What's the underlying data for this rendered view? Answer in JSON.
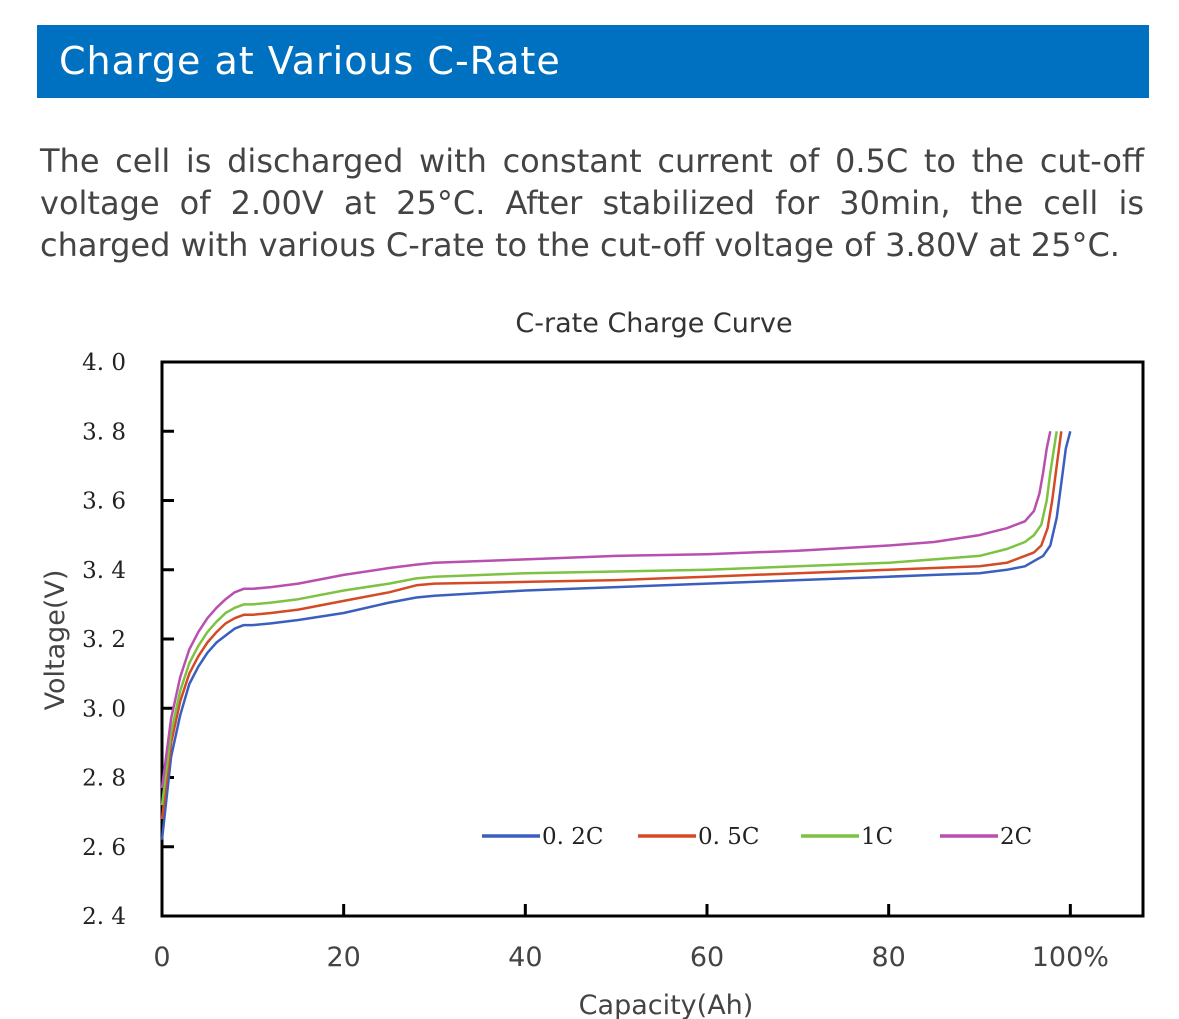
{
  "header": {
    "title": "Charge at Various C-Rate",
    "background_color": "#0070c0"
  },
  "description": "The cell is discharged with constant current of 0.5C to the cut-off voltage of 2.00V at 25°C. After stabilized for 30min, the cell is charged with various C-rate to the cut-off voltage of 3.80V at 25°C.",
  "chart_data": {
    "type": "line",
    "title": "C-rate Charge Curve",
    "xlabel": "Capacity(Ah)",
    "ylabel": "Voltage(V)",
    "xlim": [
      0,
      108
    ],
    "ylim": [
      2.4,
      4.0
    ],
    "x_ticks": [
      0,
      20,
      40,
      60,
      80,
      100
    ],
    "x_tick_labels": [
      "0",
      "20",
      "40",
      "60",
      "80",
      "100%"
    ],
    "y_ticks": [
      2.4,
      2.6,
      2.8,
      3.0,
      3.2,
      3.4,
      3.6,
      3.8,
      4.0
    ],
    "y_tick_labels": [
      "2. 4",
      "2. 6",
      "2. 8",
      "3. 0",
      "3. 2",
      "3. 4",
      "3. 6",
      "3. 8",
      "4. 0"
    ],
    "legend_position": "bottom-right-inside",
    "grid": false,
    "series": [
      {
        "name": "0. 2C",
        "color": "#3b5fbf",
        "points": [
          [
            0,
            2.62
          ],
          [
            1,
            2.86
          ],
          [
            2,
            2.98
          ],
          [
            3,
            3.07
          ],
          [
            4,
            3.12
          ],
          [
            5,
            3.16
          ],
          [
            6,
            3.19
          ],
          [
            7,
            3.21
          ],
          [
            8,
            3.23
          ],
          [
            9,
            3.24
          ],
          [
            10,
            3.24
          ],
          [
            12,
            3.245
          ],
          [
            15,
            3.255
          ],
          [
            20,
            3.275
          ],
          [
            25,
            3.305
          ],
          [
            28,
            3.32
          ],
          [
            30,
            3.325
          ],
          [
            40,
            3.34
          ],
          [
            50,
            3.35
          ],
          [
            60,
            3.36
          ],
          [
            70,
            3.37
          ],
          [
            80,
            3.38
          ],
          [
            85,
            3.385
          ],
          [
            90,
            3.39
          ],
          [
            93,
            3.4
          ],
          [
            95,
            3.41
          ],
          [
            96,
            3.425
          ],
          [
            97,
            3.44
          ],
          [
            97.8,
            3.47
          ],
          [
            98.5,
            3.55
          ],
          [
            99,
            3.65
          ],
          [
            99.5,
            3.75
          ],
          [
            100,
            3.8
          ]
        ]
      },
      {
        "name": "0. 5C",
        "color": "#d44a25",
        "points": [
          [
            0,
            2.68
          ],
          [
            1,
            2.9
          ],
          [
            2,
            3.02
          ],
          [
            3,
            3.1
          ],
          [
            4,
            3.15
          ],
          [
            5,
            3.19
          ],
          [
            6,
            3.22
          ],
          [
            7,
            3.245
          ],
          [
            8,
            3.26
          ],
          [
            9,
            3.27
          ],
          [
            10,
            3.27
          ],
          [
            12,
            3.275
          ],
          [
            15,
            3.285
          ],
          [
            20,
            3.31
          ],
          [
            25,
            3.335
          ],
          [
            28,
            3.355
          ],
          [
            30,
            3.36
          ],
          [
            40,
            3.365
          ],
          [
            50,
            3.37
          ],
          [
            60,
            3.38
          ],
          [
            70,
            3.39
          ],
          [
            80,
            3.4
          ],
          [
            85,
            3.405
          ],
          [
            90,
            3.41
          ],
          [
            93,
            3.42
          ],
          [
            95,
            3.44
          ],
          [
            96,
            3.45
          ],
          [
            96.8,
            3.47
          ],
          [
            97.5,
            3.52
          ],
          [
            98,
            3.6
          ],
          [
            98.5,
            3.7
          ],
          [
            99,
            3.8
          ]
        ]
      },
      {
        "name": "1C",
        "color": "#7dc242",
        "points": [
          [
            0,
            2.72
          ],
          [
            1,
            2.93
          ],
          [
            2,
            3.05
          ],
          [
            3,
            3.13
          ],
          [
            4,
            3.18
          ],
          [
            5,
            3.22
          ],
          [
            6,
            3.25
          ],
          [
            7,
            3.275
          ],
          [
            8,
            3.29
          ],
          [
            9,
            3.3
          ],
          [
            10,
            3.3
          ],
          [
            12,
            3.305
          ],
          [
            15,
            3.315
          ],
          [
            20,
            3.34
          ],
          [
            25,
            3.36
          ],
          [
            28,
            3.375
          ],
          [
            30,
            3.38
          ],
          [
            40,
            3.39
          ],
          [
            50,
            3.395
          ],
          [
            60,
            3.4
          ],
          [
            70,
            3.41
          ],
          [
            80,
            3.42
          ],
          [
            85,
            3.43
          ],
          [
            90,
            3.44
          ],
          [
            93,
            3.46
          ],
          [
            95,
            3.48
          ],
          [
            96,
            3.5
          ],
          [
            96.8,
            3.53
          ],
          [
            97.4,
            3.6
          ],
          [
            97.8,
            3.68
          ],
          [
            98.2,
            3.75
          ],
          [
            98.5,
            3.8
          ]
        ]
      },
      {
        "name": "2C",
        "color": "#b94fae",
        "points": [
          [
            0,
            2.77
          ],
          [
            1,
            2.97
          ],
          [
            2,
            3.09
          ],
          [
            3,
            3.17
          ],
          [
            4,
            3.22
          ],
          [
            5,
            3.26
          ],
          [
            6,
            3.29
          ],
          [
            7,
            3.315
          ],
          [
            8,
            3.335
          ],
          [
            9,
            3.345
          ],
          [
            10,
            3.345
          ],
          [
            12,
            3.35
          ],
          [
            15,
            3.36
          ],
          [
            20,
            3.385
          ],
          [
            25,
            3.405
          ],
          [
            28,
            3.415
          ],
          [
            30,
            3.42
          ],
          [
            40,
            3.43
          ],
          [
            50,
            3.44
          ],
          [
            60,
            3.445
          ],
          [
            70,
            3.455
          ],
          [
            80,
            3.47
          ],
          [
            85,
            3.48
          ],
          [
            90,
            3.5
          ],
          [
            93,
            3.52
          ],
          [
            95,
            3.54
          ],
          [
            96,
            3.57
          ],
          [
            96.6,
            3.62
          ],
          [
            97,
            3.68
          ],
          [
            97.4,
            3.75
          ],
          [
            97.8,
            3.8
          ]
        ]
      }
    ]
  }
}
